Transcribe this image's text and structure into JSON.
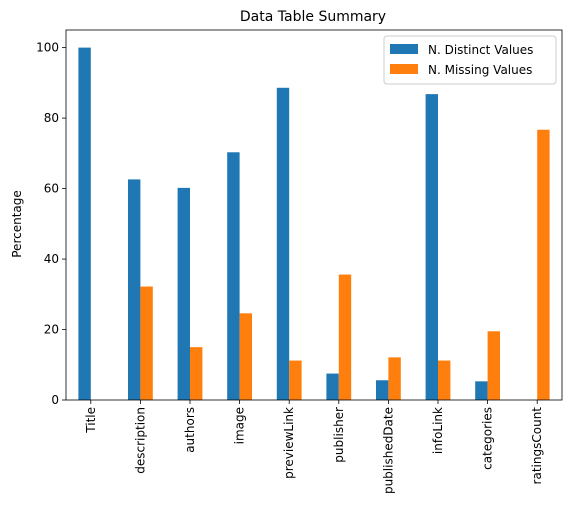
{
  "chart_data": {
    "type": "bar",
    "title": "Data Table Summary",
    "xlabel": "",
    "ylabel": "Percentage",
    "ylim": [
      0,
      105
    ],
    "yticks": [
      0,
      20,
      40,
      60,
      80,
      100
    ],
    "categories": [
      "Title",
      "description",
      "authors",
      "image",
      "previewLink",
      "publisher",
      "publishedDate",
      "infoLink",
      "categories",
      "ratingsCount"
    ],
    "series": [
      {
        "name": "N. Distinct Values",
        "color": "#1f77b4",
        "values": [
          100,
          62.6,
          60.2,
          70.3,
          88.6,
          7.5,
          5.6,
          86.8,
          5.3,
          0
        ]
      },
      {
        "name": "N. Missing Values",
        "color": "#ff7f0e",
        "values": [
          0,
          32.2,
          15.0,
          24.6,
          11.2,
          35.6,
          12.1,
          11.2,
          19.5,
          76.7
        ]
      }
    ],
    "legend_position": "top-right",
    "grid": false
  }
}
